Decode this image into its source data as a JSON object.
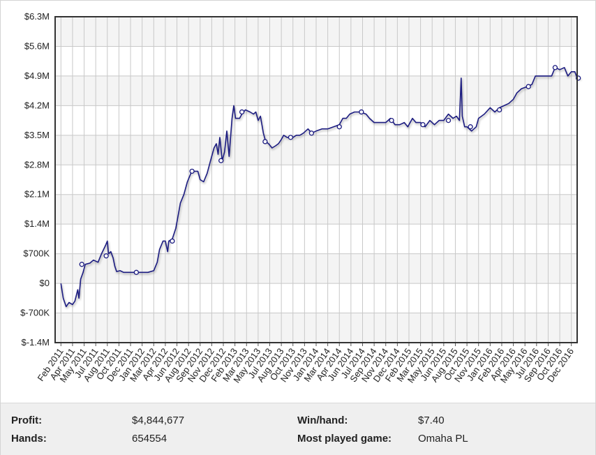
{
  "chart_data": {
    "type": "line",
    "ylim": [
      -1400000,
      6300000
    ],
    "y_ticks": [
      "$6.3M",
      "$5.6M",
      "$4.9M",
      "$4.2M",
      "$3.5M",
      "$2.8M",
      "$2.1M",
      "$1.4M",
      "$700K",
      "$0",
      "$-700K",
      "$-1.4M"
    ],
    "x_ticks": [
      "Feb 2011",
      "Apr 2011",
      "May 2011",
      "Jul 2011",
      "Aug 2011",
      "Oct 2011",
      "Dec 2011",
      "Jan 2012",
      "Mar 2012",
      "Apr 2012",
      "Jun 2012",
      "Aug 2012",
      "Sep 2012",
      "Nov 2012",
      "Dec 2012",
      "Feb 2013",
      "Mar 2013",
      "May 2013",
      "Jul 2013",
      "Aug 2013",
      "Oct 2013",
      "Nov 2013",
      "Jan 2014",
      "Mar 2014",
      "Apr 2014",
      "Jun 2014",
      "Jul 2014",
      "Sep 2014",
      "Nov 2014",
      "Dec 2014",
      "Feb 2015",
      "Mar 2015",
      "May 2015",
      "Jun 2015",
      "Aug 2015",
      "Oct 2015",
      "Nov 2015",
      "Jan 2016",
      "Feb 2016",
      "Apr 2016",
      "May 2016",
      "Jul 2016",
      "Sep 2016",
      "Oct 2016",
      "Dec 2016"
    ],
    "grid": true,
    "legend": "none",
    "series_color": "#1a1a80",
    "series": [
      {
        "values": [
          [
            0,
            0
          ],
          [
            0.2,
            -350000
          ],
          [
            0.45,
            -550000
          ],
          [
            0.7,
            -450000
          ],
          [
            1.0,
            -500000
          ],
          [
            1.2,
            -420000
          ],
          [
            1.45,
            -150000
          ],
          [
            1.55,
            -350000
          ],
          [
            1.7,
            100000
          ],
          [
            1.9,
            250000
          ],
          [
            2.1,
            450000
          ],
          [
            2.5,
            480000
          ],
          [
            2.8,
            550000
          ],
          [
            3.2,
            500000
          ],
          [
            3.5,
            700000
          ],
          [
            3.85,
            900000
          ],
          [
            4.0,
            1000000
          ],
          [
            4.1,
            700000
          ],
          [
            4.3,
            750000
          ],
          [
            4.5,
            600000
          ],
          [
            4.65,
            400000
          ],
          [
            4.8,
            280000
          ],
          [
            5.1,
            300000
          ],
          [
            5.4,
            260000
          ],
          [
            6.0,
            260000
          ],
          [
            7.0,
            260000
          ],
          [
            7.5,
            260000
          ],
          [
            8.0,
            300000
          ],
          [
            8.3,
            500000
          ],
          [
            8.5,
            800000
          ],
          [
            8.8,
            1000000
          ],
          [
            9.0,
            1000000
          ],
          [
            9.2,
            750000
          ],
          [
            9.3,
            1000000
          ],
          [
            9.6,
            1050000
          ],
          [
            9.9,
            1300000
          ],
          [
            10.1,
            1600000
          ],
          [
            10.3,
            1900000
          ],
          [
            10.6,
            2100000
          ],
          [
            10.9,
            2400000
          ],
          [
            11.2,
            2600000
          ],
          [
            11.5,
            2650000
          ],
          [
            11.8,
            2650000
          ],
          [
            12.0,
            2450000
          ],
          [
            12.3,
            2400000
          ],
          [
            12.6,
            2600000
          ],
          [
            12.9,
            2900000
          ],
          [
            13.2,
            3200000
          ],
          [
            13.4,
            3300000
          ],
          [
            13.55,
            3050000
          ],
          [
            13.7,
            3450000
          ],
          [
            13.9,
            2900000
          ],
          [
            14.1,
            3100000
          ],
          [
            14.3,
            3600000
          ],
          [
            14.5,
            3000000
          ],
          [
            14.75,
            3900000
          ],
          [
            14.9,
            4200000
          ],
          [
            15.05,
            3900000
          ],
          [
            15.4,
            3900000
          ],
          [
            15.6,
            4000000
          ],
          [
            15.9,
            4100000
          ],
          [
            16.3,
            4050000
          ],
          [
            16.6,
            4000000
          ],
          [
            16.8,
            4050000
          ],
          [
            17.0,
            3850000
          ],
          [
            17.2,
            3950000
          ],
          [
            17.45,
            3550000
          ],
          [
            17.65,
            3350000
          ],
          [
            17.9,
            3300000
          ],
          [
            18.2,
            3200000
          ],
          [
            18.5,
            3250000
          ],
          [
            18.75,
            3300000
          ],
          [
            19.0,
            3400000
          ],
          [
            19.2,
            3500000
          ],
          [
            19.5,
            3450000
          ],
          [
            20.0,
            3450000
          ],
          [
            20.3,
            3500000
          ],
          [
            20.6,
            3500000
          ],
          [
            20.9,
            3550000
          ],
          [
            21.3,
            3650000
          ],
          [
            21.6,
            3550000
          ],
          [
            22.0,
            3600000
          ],
          [
            22.5,
            3650000
          ],
          [
            23.0,
            3650000
          ],
          [
            23.5,
            3700000
          ],
          [
            24.0,
            3750000
          ],
          [
            24.3,
            3900000
          ],
          [
            24.6,
            3900000
          ],
          [
            24.9,
            4000000
          ],
          [
            25.3,
            4050000
          ],
          [
            25.8,
            4050000
          ],
          [
            26.3,
            4000000
          ],
          [
            26.6,
            3900000
          ],
          [
            27.0,
            3800000
          ],
          [
            27.5,
            3800000
          ],
          [
            28.0,
            3800000
          ],
          [
            28.4,
            3900000
          ],
          [
            28.8,
            3750000
          ],
          [
            29.2,
            3750000
          ],
          [
            29.6,
            3800000
          ],
          [
            29.9,
            3700000
          ],
          [
            30.3,
            3900000
          ],
          [
            30.6,
            3800000
          ],
          [
            31.0,
            3800000
          ],
          [
            31.4,
            3700000
          ],
          [
            31.8,
            3850000
          ],
          [
            32.2,
            3750000
          ],
          [
            32.6,
            3850000
          ],
          [
            33.0,
            3850000
          ],
          [
            33.4,
            4000000
          ],
          [
            33.8,
            3900000
          ],
          [
            34.1,
            3950000
          ],
          [
            34.35,
            3850000
          ],
          [
            34.5,
            4850000
          ],
          [
            34.6,
            3950000
          ],
          [
            34.8,
            3700000
          ],
          [
            35.0,
            3700000
          ],
          [
            35.4,
            3600000
          ],
          [
            35.8,
            3700000
          ],
          [
            36.0,
            3900000
          ],
          [
            36.5,
            4000000
          ],
          [
            37.0,
            4150000
          ],
          [
            37.4,
            4050000
          ],
          [
            37.8,
            4150000
          ],
          [
            38.2,
            4200000
          ],
          [
            38.6,
            4250000
          ],
          [
            39.0,
            4350000
          ],
          [
            39.3,
            4500000
          ],
          [
            39.7,
            4600000
          ],
          [
            40.2,
            4650000
          ],
          [
            40.6,
            4700000
          ],
          [
            40.9,
            4900000
          ],
          [
            41.3,
            4900000
          ],
          [
            41.8,
            4900000
          ],
          [
            42.3,
            4900000
          ],
          [
            42.6,
            5100000
          ],
          [
            43.0,
            5050000
          ],
          [
            43.4,
            5100000
          ],
          [
            43.7,
            4900000
          ],
          [
            44.0,
            5000000
          ],
          [
            44.3,
            5000000
          ],
          [
            44.5,
            4850000
          ],
          [
            44.8,
            4850000
          ]
        ]
      }
    ],
    "markers": [
      [
        1.8,
        450000
      ],
      [
        3.9,
        650000
      ],
      [
        6.5,
        260000
      ],
      [
        9.6,
        1000000
      ],
      [
        11.3,
        2650000
      ],
      [
        13.8,
        2900000
      ],
      [
        15.6,
        4050000
      ],
      [
        17.6,
        3350000
      ],
      [
        19.8,
        3450000
      ],
      [
        21.6,
        3550000
      ],
      [
        24.0,
        3700000
      ],
      [
        25.9,
        4050000
      ],
      [
        28.5,
        3850000
      ],
      [
        31.2,
        3750000
      ],
      [
        33.4,
        3850000
      ],
      [
        35.3,
        3700000
      ],
      [
        37.8,
        4100000
      ],
      [
        40.3,
        4650000
      ],
      [
        42.6,
        5100000
      ],
      [
        44.6,
        4850000
      ]
    ]
  },
  "stats": {
    "profit_label": "Profit:",
    "profit_value": "$4,844,677",
    "hands_label": "Hands:",
    "hands_value": "654554",
    "winhand_label": "Win/hand:",
    "winhand_value": "$7.40",
    "game_label": "Most played game:",
    "game_value": "Omaha PL"
  }
}
